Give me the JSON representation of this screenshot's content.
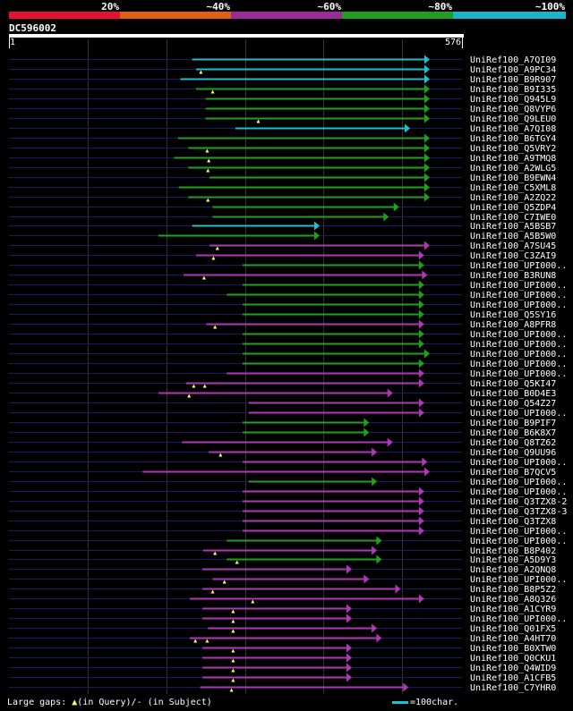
{
  "colors": {
    "background": "#000000",
    "ruler": "#ffffff",
    "query_line": "#1a1a66",
    "grid": "#333333",
    "band_lt40": "#e8112d",
    "band_lt60": "#e06010",
    "band_lt80": "#9a2a9a",
    "band_lt100": "#1f9f1f",
    "band_100": "#19b5c8",
    "hit_magenta": "#b038b8",
    "hit_green": "#20a020",
    "hit_cyan": "#20c0d0",
    "gap_marker": "#ffff66"
  },
  "identity_scale": {
    "labels": [
      "20%",
      "~40%",
      "~60%",
      "~80%",
      "~100%"
    ]
  },
  "query": {
    "id": "DC596002",
    "start_label": "1",
    "end_label": "576",
    "length": 576
  },
  "legend": {
    "text_gaps": "Large gaps: ",
    "text_query": "(in Query)/",
    "text_dash": "-",
    "text_subject": " (in Subject)",
    "scale_text": "=100char."
  },
  "hits": [
    {
      "label": "UniRef100_A7QI09",
      "start": 233,
      "end": 535,
      "color": "cyan",
      "gaps": []
    },
    {
      "label": "UniRef100_A9PC34",
      "start": 238,
      "end": 535,
      "color": "cyan",
      "gaps": [
        244
      ]
    },
    {
      "label": "UniRef100_B9R907",
      "start": 218,
      "end": 535,
      "color": "cyan",
      "gaps": []
    },
    {
      "label": "UniRef100_B9I335",
      "start": 238,
      "end": 535,
      "color": "green",
      "gaps": [
        259
      ]
    },
    {
      "label": "UniRef100_Q945L9",
      "start": 250,
      "end": 535,
      "color": "green",
      "gaps": []
    },
    {
      "label": "UniRef100_Q8VYP6",
      "start": 250,
      "end": 535,
      "color": "green",
      "gaps": []
    },
    {
      "label": "UniRef100_Q9LEU0",
      "start": 250,
      "end": 535,
      "color": "green",
      "gaps": [
        317
      ]
    },
    {
      "label": "UniRef100_A7QI08",
      "start": 288,
      "end": 510,
      "color": "cyan",
      "gaps": []
    },
    {
      "label": "UniRef100_B6TGY4",
      "start": 215,
      "end": 535,
      "color": "green",
      "gaps": []
    },
    {
      "label": "UniRef100_Q5VRY2",
      "start": 228,
      "end": 535,
      "color": "green",
      "gaps": [
        252
      ]
    },
    {
      "label": "UniRef100_A9TMQ8",
      "start": 210,
      "end": 535,
      "color": "green",
      "gaps": [
        254
      ]
    },
    {
      "label": "UniRef100_A2WLG5",
      "start": 228,
      "end": 535,
      "color": "green",
      "gaps": [
        253
      ]
    },
    {
      "label": "UniRef100_B9EWN4",
      "start": 255,
      "end": 535,
      "color": "green",
      "gaps": []
    },
    {
      "label": "UniRef100_C5XML8",
      "start": 216,
      "end": 535,
      "color": "green",
      "gaps": []
    },
    {
      "label": "UniRef100_A2ZQ22",
      "start": 228,
      "end": 535,
      "color": "green",
      "gaps": [
        253
      ]
    },
    {
      "label": "UniRef100_Q5ZDP4",
      "start": 259,
      "end": 496,
      "color": "green",
      "gaps": []
    },
    {
      "label": "UniRef100_C7IWE0",
      "start": 259,
      "end": 483,
      "color": "green",
      "gaps": []
    },
    {
      "label": "UniRef100_A5BSB7",
      "start": 233,
      "end": 395,
      "color": "cyan",
      "gaps": []
    },
    {
      "label": "UniRef100_A5B5W0",
      "start": 190,
      "end": 395,
      "color": "green",
      "gaps": []
    },
    {
      "label": "UniRef100_A7SU45",
      "start": 255,
      "end": 535,
      "color": "magenta",
      "gaps": [
        265
      ]
    },
    {
      "label": "UniRef100_C3ZAI9",
      "start": 238,
      "end": 528,
      "color": "magenta",
      "gaps": [
        260
      ]
    },
    {
      "label": "UniRef100_UPI000..",
      "start": 297,
      "end": 528,
      "color": "green",
      "gaps": []
    },
    {
      "label": "UniRef100_B3RUN8",
      "start": 222,
      "end": 532,
      "color": "magenta",
      "gaps": [
        248
      ]
    },
    {
      "label": "UniRef100_UPI000..",
      "start": 297,
      "end": 528,
      "color": "green",
      "gaps": []
    },
    {
      "label": "UniRef100_UPI000..",
      "start": 277,
      "end": 528,
      "color": "green",
      "gaps": []
    },
    {
      "label": "UniRef100_UPI000..",
      "start": 297,
      "end": 528,
      "color": "green",
      "gaps": []
    },
    {
      "label": "UniRef100_Q5SY16",
      "start": 297,
      "end": 528,
      "color": "green",
      "gaps": []
    },
    {
      "label": "UniRef100_A8PFR8",
      "start": 251,
      "end": 528,
      "color": "magenta",
      "gaps": [
        262
      ]
    },
    {
      "label": "UniRef100_UPI000..",
      "start": 297,
      "end": 528,
      "color": "green",
      "gaps": []
    },
    {
      "label": "UniRef100_UPI000..",
      "start": 297,
      "end": 528,
      "color": "green",
      "gaps": []
    },
    {
      "label": "UniRef100_UPI000..",
      "start": 297,
      "end": 535,
      "color": "green",
      "gaps": []
    },
    {
      "label": "UniRef100_UPI000..",
      "start": 297,
      "end": 528,
      "color": "green",
      "gaps": []
    },
    {
      "label": "UniRef100_UPI000..",
      "start": 277,
      "end": 528,
      "color": "magenta",
      "gaps": []
    },
    {
      "label": "UniRef100_Q5KI47",
      "start": 225,
      "end": 528,
      "color": "magenta",
      "gaps": [
        235,
        249
      ]
    },
    {
      "label": "UniRef100_B0D4E3",
      "start": 190,
      "end": 488,
      "color": "magenta",
      "gaps": [
        229
      ]
    },
    {
      "label": "UniRef100_Q54Z27",
      "start": 305,
      "end": 528,
      "color": "magenta",
      "gaps": []
    },
    {
      "label": "UniRef100_UPI000..",
      "start": 305,
      "end": 528,
      "color": "magenta",
      "gaps": []
    },
    {
      "label": "UniRef100_B9PIF7",
      "start": 297,
      "end": 458,
      "color": "green",
      "gaps": []
    },
    {
      "label": "UniRef100_B6K8X7",
      "start": 297,
      "end": 458,
      "color": "green",
      "gaps": []
    },
    {
      "label": "UniRef100_Q8TZ62",
      "start": 220,
      "end": 488,
      "color": "magenta",
      "gaps": []
    },
    {
      "label": "UniRef100_Q9UU96",
      "start": 254,
      "end": 468,
      "color": "magenta",
      "gaps": [
        269
      ]
    },
    {
      "label": "UniRef100_UPI000..",
      "start": 297,
      "end": 532,
      "color": "magenta",
      "gaps": []
    },
    {
      "label": "UniRef100_B7QCV5",
      "start": 170,
      "end": 535,
      "color": "magenta",
      "gaps": []
    },
    {
      "label": "UniRef100_UPI000..",
      "start": 305,
      "end": 468,
      "color": "green",
      "gaps": []
    },
    {
      "label": "UniRef100_UPI000..",
      "start": 297,
      "end": 528,
      "color": "magenta",
      "gaps": []
    },
    {
      "label": "UniRef100_Q3TZX8-2",
      "start": 297,
      "end": 528,
      "color": "magenta",
      "gaps": []
    },
    {
      "label": "UniRef100_Q3TZX8-3",
      "start": 297,
      "end": 528,
      "color": "magenta",
      "gaps": []
    },
    {
      "label": "UniRef100_Q3TZX8",
      "start": 297,
      "end": 528,
      "color": "magenta",
      "gaps": []
    },
    {
      "label": "UniRef100_UPI000..",
      "start": 297,
      "end": 528,
      "color": "magenta",
      "gaps": []
    },
    {
      "label": "UniRef100_UPI000..",
      "start": 277,
      "end": 474,
      "color": "green",
      "gaps": []
    },
    {
      "label": "UniRef100_B8P402",
      "start": 247,
      "end": 468,
      "color": "magenta",
      "gaps": [
        262
      ]
    },
    {
      "label": "UniRef100_A5D9Y3",
      "start": 277,
      "end": 474,
      "color": "green",
      "gaps": [
        290
      ]
    },
    {
      "label": "UniRef100_A2QNQ8",
      "start": 246,
      "end": 436,
      "color": "magenta",
      "gaps": []
    },
    {
      "label": "UniRef100_UPI000..",
      "start": 259,
      "end": 458,
      "color": "magenta",
      "gaps": [
        274
      ]
    },
    {
      "label": "UniRef100_B8P5Z2",
      "start": 246,
      "end": 498,
      "color": "magenta",
      "gaps": [
        259
      ]
    },
    {
      "label": "UniRef100_A8Q326",
      "start": 230,
      "end": 528,
      "color": "magenta",
      "gaps": [
        310
      ]
    },
    {
      "label": "UniRef100_A1CYR9",
      "start": 246,
      "end": 436,
      "color": "magenta",
      "gaps": [
        285
      ]
    },
    {
      "label": "UniRef100_UPI000..",
      "start": 246,
      "end": 436,
      "color": "magenta",
      "gaps": [
        285
      ]
    },
    {
      "label": "UniRef100_Q01FX5",
      "start": 253,
      "end": 468,
      "color": "magenta",
      "gaps": [
        285
      ]
    },
    {
      "label": "UniRef100_A4HT70",
      "start": 230,
      "end": 474,
      "color": "magenta",
      "gaps": [
        237,
        252
      ]
    },
    {
      "label": "UniRef100_B0XTW0",
      "start": 246,
      "end": 436,
      "color": "magenta",
      "gaps": [
        285
      ]
    },
    {
      "label": "UniRef100_Q0CKU1",
      "start": 246,
      "end": 436,
      "color": "magenta",
      "gaps": [
        285
      ]
    },
    {
      "label": "UniRef100_Q4WID9",
      "start": 246,
      "end": 436,
      "color": "magenta",
      "gaps": [
        285
      ]
    },
    {
      "label": "UniRef100_A1CFB5",
      "start": 246,
      "end": 436,
      "color": "magenta",
      "gaps": [
        285
      ]
    },
    {
      "label": "UniRef100_C7YHR0",
      "start": 243,
      "end": 508,
      "color": "magenta",
      "gaps": [
        283
      ]
    }
  ]
}
